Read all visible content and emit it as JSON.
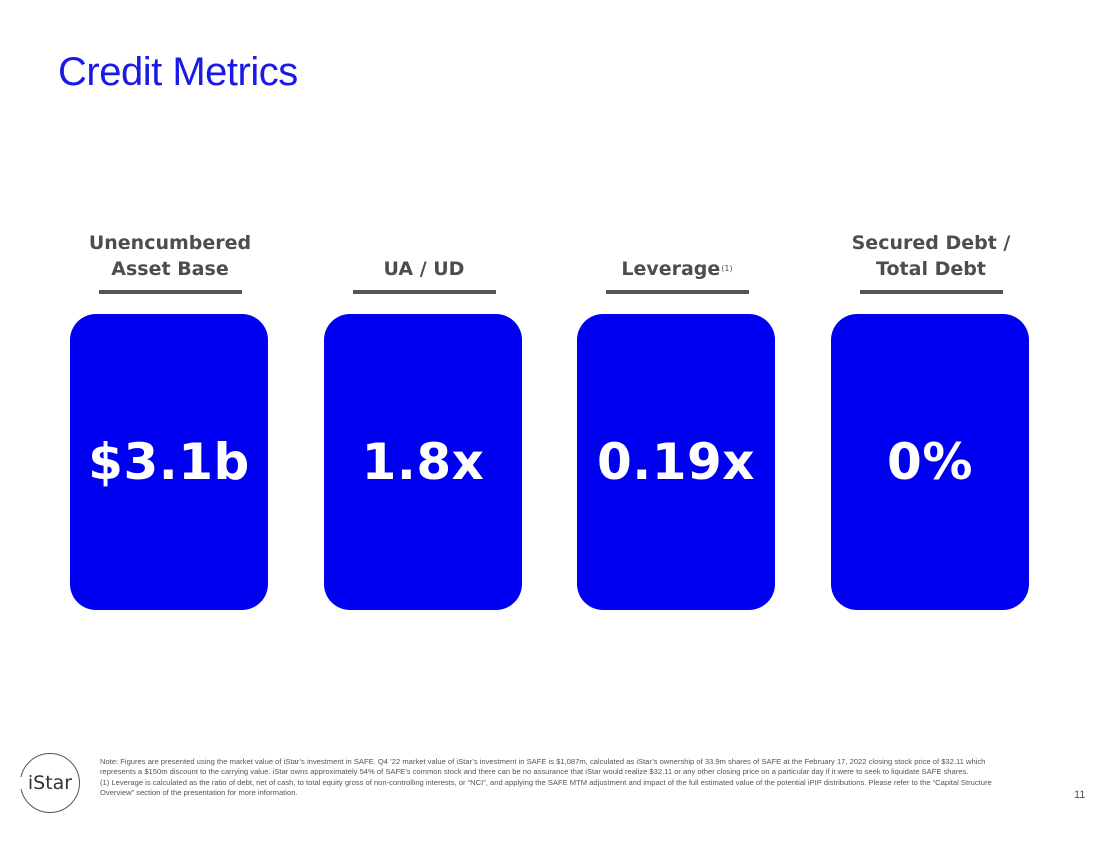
{
  "slide": {
    "title": "Credit Metrics",
    "page_number": "11"
  },
  "metrics": [
    {
      "label": "Unencumbered\nAsset Base",
      "value": "$3.1b"
    },
    {
      "label": "UA / UD",
      "value": "1.8x"
    },
    {
      "label": "Leverage",
      "footnote_marker": "(1)",
      "value": "0.19x"
    },
    {
      "label": "Secured Debt /\nTotal Debt",
      "value": "0%"
    }
  ],
  "logo": {
    "text": "iStar"
  },
  "footnotes": {
    "note": "Note: Figures are presented using the market value of iStar’s investment in SAFE. Q4 ’22 market value of iStar’s investment in SAFE is $1,087m, calculated as iStar’s ownership of 33.9m shares of SAFE at the February 17, 2022 closing stock price of $32.11 which represents a $150m discount to the carrying value. iStar owns approximately 54% of SAFE’s common stock and there can be no assurance that iStar would realize $32.11 or any other closing price on a particular day if it were to seek to liquidate SAFE shares.",
    "leverage": "(1) Leverage is calculated as the ratio of debt, net of cash, to total equity gross of non-controlling interests, or “NCI”, and applying the SAFE MTM adjustment and impact of the full estimated value of the potential iPIP distributions. Please refer to the “Capital Structure Overview” section of the presentation for more information."
  },
  "colors": {
    "accent": "#0000f0",
    "title": "#1a1ae6",
    "label": "#4d4d4d"
  }
}
